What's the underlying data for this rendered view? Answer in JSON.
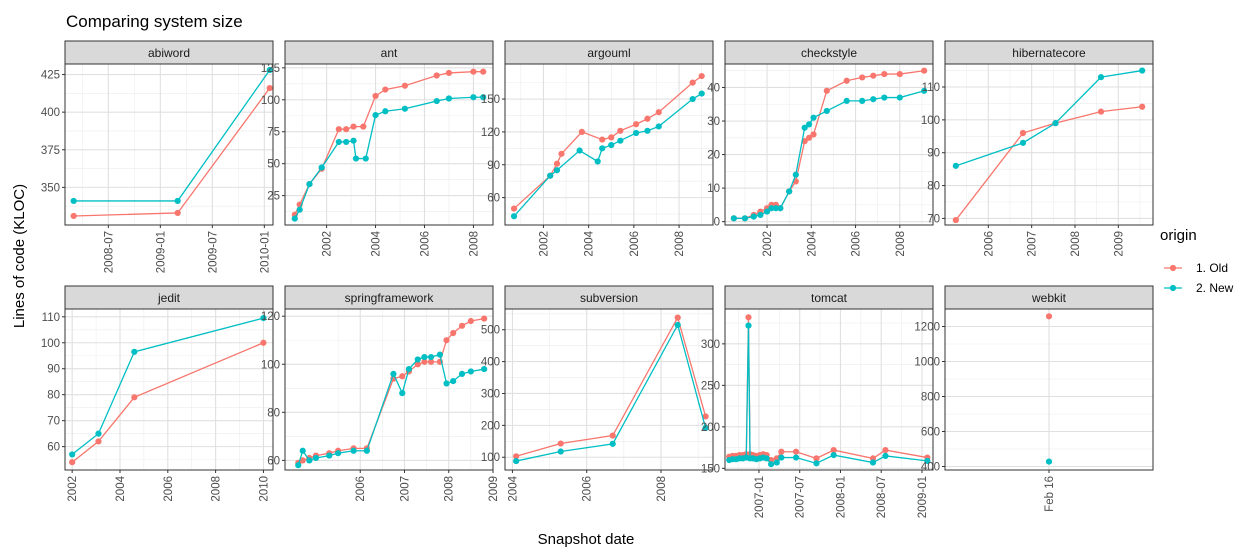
{
  "chart_data": {
    "type": "line",
    "title": "Comparing system size",
    "xlabel": "Snapshot date",
    "ylabel": "Lines of code (KLOC)",
    "legend": {
      "title": "origin",
      "position": "right",
      "items": [
        {
          "name": "1. Old",
          "color": "#F8766D"
        },
        {
          "name": "2. New",
          "color": "#00BFC4"
        }
      ]
    },
    "grid": true,
    "facets": [
      {
        "name": "abiword",
        "x_type": "date",
        "xlim": [
          "2008-02-01",
          "2010-02-01"
        ],
        "ylim": [
          325,
          432
        ],
        "x_ticks": [
          "2008-07-01",
          "2009-01-01",
          "2009-07-01",
          "2010-01-01"
        ],
        "x_tick_labels": [
          "2008-07",
          "2009-01",
          "2009-07",
          "2010-01"
        ],
        "y_ticks": [
          350,
          375,
          400,
          425
        ],
        "series": [
          {
            "name": "1. Old",
            "x": [
              "2008-03-01",
              "2009-03-01",
              "2010-01-20"
            ],
            "y": [
              331,
              333,
              416
            ]
          },
          {
            "name": "2. New",
            "x": [
              "2008-03-01",
              "2009-03-01",
              "2010-01-20"
            ],
            "y": [
              341,
              341,
              428
            ]
          }
        ]
      },
      {
        "name": "ant",
        "x_type": "year",
        "xlim": [
          2000.3,
          2008.8
        ],
        "ylim": [
          2,
          128
        ],
        "x_ticks": [
          2002,
          2004,
          2006,
          2008
        ],
        "x_tick_labels": [
          "2002",
          "2004",
          "2006",
          "2008"
        ],
        "y_ticks": [
          25,
          50,
          75,
          100,
          125
        ],
        "series": [
          {
            "name": "1. Old",
            "x": [
              2000.7,
              2000.9,
              2001.3,
              2001.8,
              2002.5,
              2002.8,
              2003.1,
              2003.5,
              2004.0,
              2004.4,
              2005.2,
              2006.5,
              2007.0,
              2008.0,
              2008.4
            ],
            "y": [
              10,
              18,
              34,
              46,
              77,
              77,
              79,
              79,
              103,
              108,
              111,
              119,
              121,
              122,
              122
            ]
          },
          {
            "name": "2. New",
            "x": [
              2000.7,
              2000.9,
              2001.3,
              2001.8,
              2002.5,
              2002.8,
              2003.1,
              2003.2,
              2003.6,
              2004.0,
              2004.4,
              2005.2,
              2006.5,
              2007.0,
              2008.0,
              2008.4
            ],
            "y": [
              7,
              14,
              34,
              47,
              67,
              67,
              68,
              54,
              54,
              88,
              91,
              93,
              99,
              101,
              102,
              102
            ]
          }
        ]
      },
      {
        "name": "argouml",
        "x_type": "year",
        "xlim": [
          2000.3,
          2009.5
        ],
        "ylim": [
          35,
          182
        ],
        "x_ticks": [
          2002,
          2004,
          2006,
          2008
        ],
        "x_tick_labels": [
          "2002",
          "2004",
          "2006",
          "2008"
        ],
        "y_ticks": [
          60,
          90,
          120,
          150
        ],
        "series": [
          {
            "name": "1. Old",
            "x": [
              2000.7,
              2002.3,
              2002.6,
              2002.8,
              2003.7,
              2004.6,
              2005.0,
              2005.4,
              2006.1,
              2006.6,
              2007.1,
              2008.6,
              2009.0
            ],
            "y": [
              50,
              80,
              91,
              100,
              120,
              113,
              115,
              121,
              127,
              132,
              138,
              165,
              171
            ]
          },
          {
            "name": "2. New",
            "x": [
              2000.7,
              2002.3,
              2002.6,
              2003.6,
              2004.4,
              2004.6,
              2005.0,
              2005.4,
              2006.1,
              2006.6,
              2007.1,
              2008.6,
              2009.0
            ],
            "y": [
              43,
              80,
              85,
              103,
              93,
              105,
              108,
              112,
              119,
              121,
              125,
              150,
              155
            ]
          }
        ]
      },
      {
        "name": "checkstyle",
        "x_type": "year",
        "xlim": [
          2000.1,
          2009.5
        ],
        "ylim": [
          -1,
          47
        ],
        "x_ticks": [
          2002,
          2004,
          2006,
          2008
        ],
        "x_tick_labels": [
          "2002",
          "2004",
          "2006",
          "2008"
        ],
        "y_ticks": [
          0,
          10,
          20,
          30,
          40
        ],
        "series": [
          {
            "name": "1. Old",
            "x": [
              2000.5,
              2001.0,
              2001.4,
              2001.7,
              2002.0,
              2002.2,
              2002.4,
              2002.6,
              2003.0,
              2003.3,
              2003.7,
              2003.9,
              2004.1,
              2004.7,
              2005.6,
              2006.3,
              2006.8,
              2007.3,
              2008.0,
              2009.1
            ],
            "y": [
              1,
              1,
              2,
              3,
              4,
              5,
              5,
              4,
              9,
              12,
              24,
              25,
              26,
              39,
              42,
              43,
              43.5,
              44,
              44,
              45
            ]
          },
          {
            "name": "2. New",
            "x": [
              2000.5,
              2001.0,
              2001.4,
              2001.7,
              2002.0,
              2002.2,
              2002.4,
              2002.6,
              2003.0,
              2003.3,
              2003.7,
              2003.9,
              2004.1,
              2004.7,
              2005.6,
              2006.3,
              2006.8,
              2007.3,
              2008.0,
              2009.1
            ],
            "y": [
              1,
              1,
              1.5,
              2,
              3,
              4,
              4,
              4,
              9,
              14,
              28,
              29,
              31,
              33,
              36,
              36,
              36.5,
              37,
              37,
              39
            ]
          }
        ]
      },
      {
        "name": "hibernatecore",
        "x_type": "year",
        "xlim": [
          2005.0,
          2009.8
        ],
        "ylim": [
          68,
          117
        ],
        "x_ticks": [
          2006,
          2007,
          2008,
          2009
        ],
        "x_tick_labels": [
          "2006",
          "2007",
          "2008",
          "2009"
        ],
        "y_ticks": [
          70,
          80,
          90,
          100,
          110
        ],
        "series": [
          {
            "name": "1. Old",
            "x": [
              2005.25,
              2006.8,
              2007.55,
              2008.6,
              2009.55
            ],
            "y": [
              69.5,
              96,
              99,
              102.5,
              104
            ]
          },
          {
            "name": "2. New",
            "x": [
              2005.25,
              2006.8,
              2007.55,
              2008.6,
              2009.55
            ],
            "y": [
              86,
              93,
              99,
              113,
              115
            ]
          }
        ]
      },
      {
        "name": "jedit",
        "x_type": "year",
        "xlim": [
          2001.7,
          2010.4
        ],
        "ylim": [
          51,
          113
        ],
        "x_ticks": [
          2002,
          2004,
          2006,
          2008,
          2010
        ],
        "x_tick_labels": [
          "2002",
          "2004",
          "2006",
          "2008",
          "2010"
        ],
        "y_ticks": [
          60,
          70,
          80,
          90,
          100,
          110
        ],
        "series": [
          {
            "name": "1. Old",
            "x": [
              2002.0,
              2003.1,
              2004.6,
              2010.0
            ],
            "y": [
              54,
              62,
              79,
              100
            ]
          },
          {
            "name": "2. New",
            "x": [
              2002.0,
              2003.1,
              2004.6,
              2010.0
            ],
            "y": [
              57,
              65,
              96.5,
              109.5
            ]
          }
        ]
      },
      {
        "name": "springframework",
        "x_type": "year",
        "xlim": [
          2004.3,
          2009.0
        ],
        "ylim": [
          56,
          123
        ],
        "x_ticks": [
          2006,
          2007,
          2008,
          2009
        ],
        "x_tick_labels": [
          "2006",
          "2007",
          "2008",
          "2009"
        ],
        "y_ticks": [
          60,
          80,
          100,
          120
        ],
        "series": [
          {
            "name": "1. Old",
            "x": [
              2004.6,
              2004.7,
              2004.85,
              2005.0,
              2005.3,
              2005.5,
              2005.85,
              2006.15,
              2006.75,
              2006.95,
              2007.1,
              2007.3,
              2007.45,
              2007.6,
              2007.8,
              2007.95,
              2008.1,
              2008.3,
              2008.5,
              2008.8
            ],
            "y": [
              59,
              60,
              61,
              62,
              63,
              64,
              65,
              65,
              94,
              95,
              97,
              100,
              101,
              101,
              101,
              110,
              113,
              116,
              118,
              119
            ]
          },
          {
            "name": "2. New",
            "x": [
              2004.6,
              2004.7,
              2004.85,
              2005.0,
              2005.3,
              2005.5,
              2005.85,
              2006.15,
              2006.75,
              2006.95,
              2007.1,
              2007.3,
              2007.45,
              2007.6,
              2007.8,
              2007.95,
              2008.1,
              2008.3,
              2008.5,
              2008.8
            ],
            "y": [
              58,
              64,
              60,
              61,
              62,
              63,
              64,
              64,
              96,
              88,
              98,
              102,
              103,
              103,
              104,
              92,
              93,
              96,
              97,
              98
            ]
          }
        ]
      },
      {
        "name": "subversion",
        "x_type": "year",
        "xlim": [
          2003.8,
          2009.4
        ],
        "ylim": [
          60,
          565
        ],
        "x_ticks": [
          2004,
          2006,
          2008
        ],
        "x_tick_labels": [
          "2004",
          "2006",
          "2008"
        ],
        "y_ticks": [
          100,
          200,
          300,
          400,
          500
        ],
        "series": [
          {
            "name": "1. Old",
            "x": [
              2004.1,
              2005.3,
              2006.7,
              2008.45,
              2009.2
            ],
            "y": [
              103,
              143,
              168,
              538,
              228
            ]
          },
          {
            "name": "2. New",
            "x": [
              2004.1,
              2005.3,
              2006.7,
              2008.45,
              2009.2
            ],
            "y": [
              88,
              118,
              142,
              515,
              192
            ]
          }
        ]
      },
      {
        "name": "tomcat",
        "x_type": "date",
        "xlim": [
          "2006-08-01",
          "2009-02-20"
        ],
        "ylim": [
          148,
          342
        ],
        "x_ticks": [
          "2007-01-01",
          "2007-07-01",
          "2008-01-01",
          "2008-07-01",
          "2009-01-01"
        ],
        "x_tick_labels": [
          "2007-01",
          "2007-07",
          "2008-01",
          "2008-07",
          "2009-01"
        ],
        "y_ticks": [
          150,
          200,
          250,
          300
        ],
        "series": [
          {
            "name": "1. Old",
            "x": [
              "2006-08-20",
              "2006-09-05",
              "2006-09-20",
              "2006-10-05",
              "2006-10-20",
              "2006-11-05",
              "2006-11-15",
              "2006-11-22",
              "2006-12-05",
              "2006-12-20",
              "2007-01-05",
              "2007-01-20",
              "2007-02-05",
              "2007-02-25",
              "2007-03-20",
              "2007-04-10",
              "2007-06-15",
              "2007-09-15",
              "2007-12-01",
              "2008-05-25",
              "2008-07-20",
              "2009-01-25"
            ],
            "y": [
              164,
              165,
              165,
              166,
              166,
              167,
              332,
              167,
              166,
              165,
              166,
              167,
              166,
              160,
              162,
              170,
              170,
              162,
              172,
              162,
              172,
              163
            ]
          },
          {
            "name": "2. New",
            "x": [
              "2006-08-20",
              "2006-09-05",
              "2006-09-20",
              "2006-10-05",
              "2006-10-20",
              "2006-11-05",
              "2006-11-15",
              "2006-11-22",
              "2006-12-05",
              "2006-12-20",
              "2007-01-05",
              "2007-01-20",
              "2007-02-05",
              "2007-02-25",
              "2007-03-20",
              "2007-04-10",
              "2007-06-15",
              "2007-09-15",
              "2007-12-01",
              "2008-05-25",
              "2008-07-20",
              "2009-01-25"
            ],
            "y": [
              160,
              161,
              161,
              162,
              162,
              163,
              322,
              162,
              162,
              161,
              162,
              163,
              162,
              155,
              157,
              163,
              163,
              156,
              166,
              157,
              165,
              159
            ]
          }
        ]
      },
      {
        "name": "webkit",
        "x_type": "category",
        "categories": [
          "Feb 16"
        ],
        "ylim": [
          380,
          1300
        ],
        "x_ticks": [
          "Feb 16"
        ],
        "x_tick_labels": [
          "Feb 16"
        ],
        "y_ticks": [
          400,
          600,
          800,
          1000,
          1200
        ],
        "series": [
          {
            "name": "1. Old",
            "x": [
              "Feb 16"
            ],
            "y": [
              1258
            ]
          },
          {
            "name": "2. New",
            "x": [
              "Feb 16"
            ],
            "y": [
              428
            ]
          }
        ]
      }
    ]
  }
}
